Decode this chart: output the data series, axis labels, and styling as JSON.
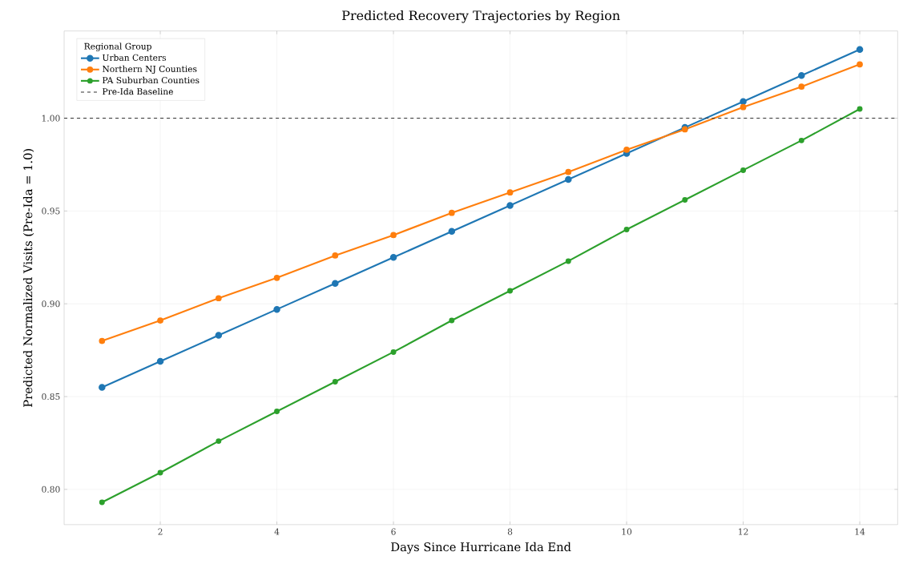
{
  "chart_data": {
    "type": "line",
    "title": "Predicted Recovery Trajectories by Region",
    "xlabel": "Days Since Hurricane Ida End",
    "ylabel": "Predicted Normalized Visits (Pre-Ida = 1.0)",
    "legend_title": "Regional Group",
    "x": [
      1,
      2,
      3,
      4,
      5,
      6,
      7,
      8,
      9,
      10,
      11,
      12,
      13,
      14
    ],
    "series": [
      {
        "name": "Urban Centers",
        "color": "#1f77b4",
        "values": [
          0.855,
          0.869,
          0.883,
          0.897,
          0.911,
          0.925,
          0.939,
          0.953,
          0.967,
          0.981,
          0.995,
          1.009,
          1.023,
          1.037
        ]
      },
      {
        "name": "Northern NJ Counties",
        "color": "#ff7f0e",
        "values": [
          0.88,
          0.891,
          0.903,
          0.914,
          0.926,
          0.937,
          0.949,
          0.96,
          0.971,
          0.983,
          0.994,
          1.006,
          1.017,
          1.029
        ]
      },
      {
        "name": "PA Suburban Counties",
        "color": "#2ca02c",
        "values": [
          0.793,
          0.809,
          0.826,
          0.842,
          0.858,
          0.874,
          0.891,
          0.907,
          0.923,
          0.94,
          0.956,
          0.972,
          0.988,
          1.005
        ]
      }
    ],
    "ref_lines": [
      {
        "axis": "y",
        "value": 1.0,
        "label": "Pre-Ida Baseline",
        "color": "#333333",
        "line_style": "dashed"
      }
    ],
    "xlim": [
      0.35,
      14.65
    ],
    "ylim": [
      0.781,
      1.047
    ],
    "xticks": [
      2,
      4,
      6,
      8,
      10,
      12,
      14
    ],
    "yticks": [
      {
        "value": 0.8,
        "label": "0.80"
      },
      {
        "value": 0.85,
        "label": "0.85"
      },
      {
        "value": 0.9,
        "label": "0.90"
      },
      {
        "value": 0.95,
        "label": "0.95"
      },
      {
        "value": 1.0,
        "label": "1.00"
      }
    ],
    "grid": true,
    "legend": "top left",
    "marker": "circle",
    "line_style": "solid"
  }
}
